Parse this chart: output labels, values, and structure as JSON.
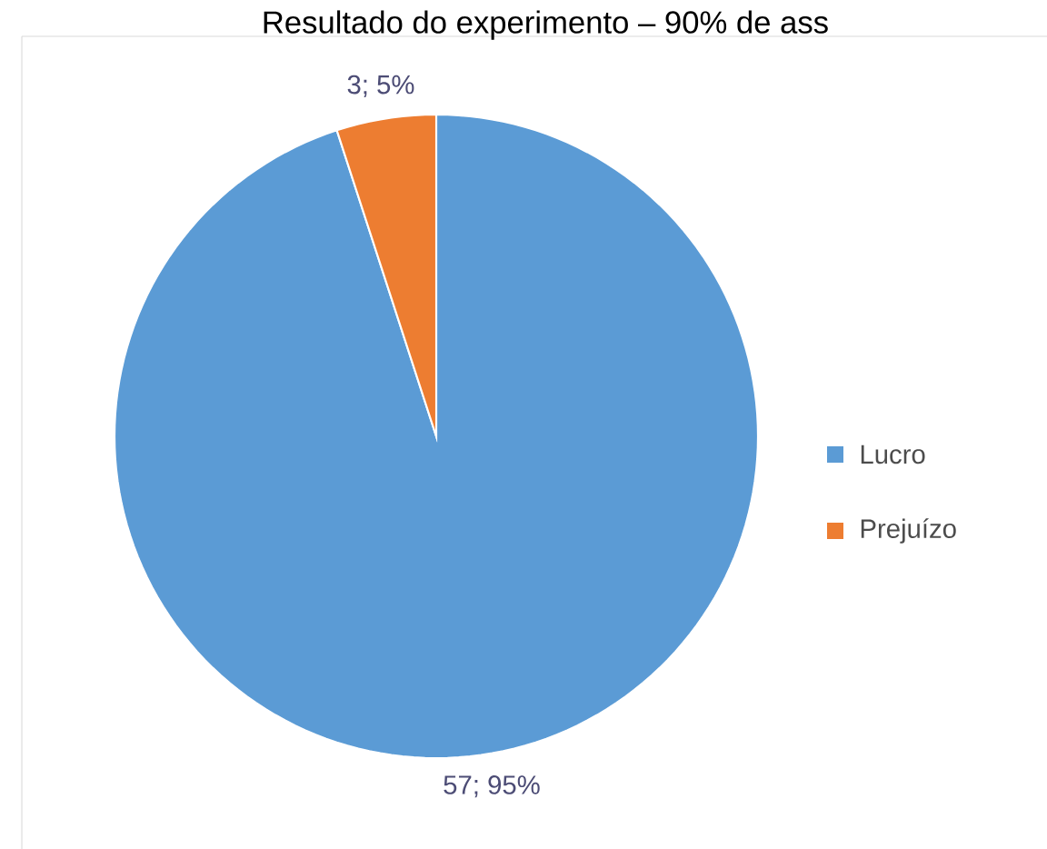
{
  "chart_data": {
    "type": "pie",
    "title": "Resultado do experimento – 90% de ass",
    "categories": [
      "Lucro",
      "Prejuízo"
    ],
    "values": [
      57,
      3
    ],
    "colors": [
      "#5b9bd5",
      "#ed7d31"
    ],
    "value_labels": [
      "57; 95%",
      "3; 5%"
    ],
    "legend": "right"
  }
}
